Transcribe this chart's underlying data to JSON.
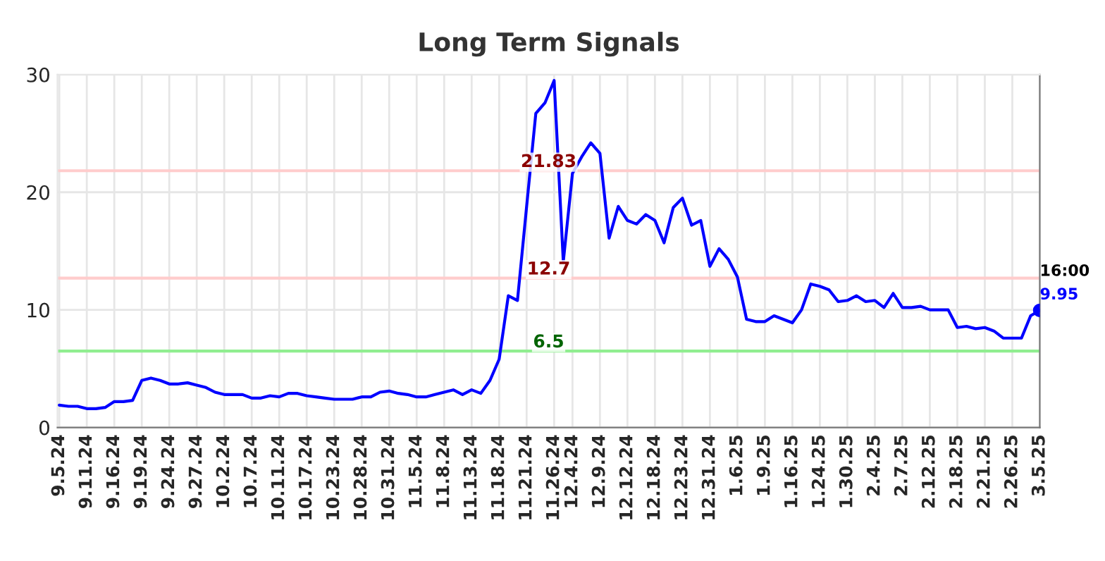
{
  "chart_data": {
    "type": "line",
    "title": "Long Term Signals",
    "categories": [
      "9.5.24",
      null,
      null,
      "9.11.24",
      null,
      null,
      "9.16.24",
      null,
      null,
      "9.19.24",
      null,
      null,
      "9.24.24",
      null,
      null,
      "9.27.24",
      null,
      null,
      "10.2.24",
      null,
      null,
      "10.7.24",
      null,
      null,
      "10.11.24",
      null,
      null,
      "10.17.24",
      null,
      null,
      "10.23.24",
      null,
      null,
      "10.28.24",
      null,
      null,
      "10.31.24",
      null,
      null,
      "11.5.24",
      null,
      null,
      "11.8.24",
      null,
      null,
      "11.13.24",
      null,
      null,
      "11.18.24",
      null,
      null,
      "11.21.24",
      null,
      null,
      "11.26.24",
      null,
      "12.4.24",
      null,
      null,
      "12.9.24",
      null,
      null,
      "12.12.24",
      null,
      null,
      "12.18.24",
      null,
      null,
      "12.23.24",
      null,
      null,
      "12.31.24",
      null,
      null,
      "1.6.25",
      null,
      null,
      "1.9.25",
      null,
      null,
      "1.16.25",
      null,
      null,
      "1.24.25",
      null,
      null,
      "1.30.25",
      null,
      null,
      "2.4.25",
      null,
      null,
      "2.7.25",
      null,
      null,
      "2.12.25",
      null,
      null,
      "2.18.25",
      null,
      null,
      "2.21.25",
      null,
      null,
      "2.26.25",
      null,
      null,
      "3.5.25"
    ],
    "series": [
      {
        "color": "#0000ff",
        "values": [
          1.9,
          1.8,
          1.8,
          1.6,
          1.6,
          1.7,
          2.2,
          2.2,
          2.3,
          4.0,
          4.2,
          4.0,
          3.7,
          3.7,
          3.8,
          3.6,
          3.4,
          3.0,
          2.8,
          2.8,
          2.8,
          2.5,
          2.5,
          2.7,
          2.6,
          2.9,
          2.9,
          2.7,
          2.6,
          2.5,
          2.4,
          2.4,
          2.4,
          2.6,
          2.6,
          3.0,
          3.1,
          2.9,
          2.8,
          2.6,
          2.6,
          2.8,
          3.0,
          3.2,
          2.8,
          3.2,
          2.9,
          4.0,
          5.8,
          11.2,
          10.8,
          18.8,
          26.7,
          27.6,
          29.5,
          14.1,
          21.6,
          23.0,
          24.2,
          23.3,
          16.1,
          18.8,
          17.6,
          17.3,
          18.1,
          17.6,
          15.7,
          18.7,
          19.5,
          17.2,
          17.6,
          13.7,
          15.2,
          14.3,
          12.8,
          9.2,
          9.0,
          9.0,
          9.5,
          9.2,
          8.9,
          10.0,
          12.2,
          12.0,
          11.7,
          10.7,
          10.8,
          11.2,
          10.7,
          10.8,
          10.2,
          11.4,
          10.2,
          10.2,
          10.3,
          10.0,
          10.0,
          10.0,
          8.5,
          8.6,
          8.4,
          8.5,
          8.2,
          7.6,
          7.6,
          7.6,
          9.5,
          9.95
        ],
        "value_labels": [
          null,
          null,
          null,
          null,
          null,
          null,
          null,
          null,
          null,
          null,
          null,
          null,
          null,
          null,
          null,
          null,
          null,
          null,
          null,
          null,
          null,
          null,
          null,
          null,
          null,
          null,
          null,
          null,
          null,
          null,
          null,
          null,
          null,
          null,
          null,
          null,
          null,
          null,
          null,
          null,
          null,
          null,
          null,
          null,
          null,
          null,
          null,
          null,
          null,
          null,
          null,
          null,
          null,
          null,
          null,
          null,
          null,
          null,
          null,
          null,
          null,
          null,
          null,
          null,
          null,
          null,
          null,
          null,
          null,
          null,
          null,
          null,
          null,
          null,
          null,
          null,
          null,
          null,
          null,
          null,
          null,
          null,
          null,
          null,
          null,
          null,
          null,
          null,
          null,
          null,
          null,
          null,
          null,
          null,
          null,
          null,
          null,
          null,
          null,
          null,
          null,
          null,
          null,
          null,
          null,
          null,
          null,
          "9.95"
        ]
      }
    ],
    "ylim": [
      0,
      30
    ],
    "yticks": [
      0,
      10,
      20,
      30
    ],
    "grid": true,
    "marker": "none",
    "line_style": "solid",
    "ref_lines": [
      {
        "axis": "y",
        "value": 21.83,
        "label": "21.83",
        "color": "#ffcccc"
      },
      {
        "axis": "y",
        "value": 12.7,
        "label": "12.7",
        "color": "#ffcccc"
      },
      {
        "axis": "y",
        "value": 6.5,
        "label": "6.5",
        "color": "#90ee90"
      }
    ],
    "annotations": [
      {
        "text": "16:00",
        "x": "3.5.25",
        "y": 9.95
      }
    ]
  }
}
